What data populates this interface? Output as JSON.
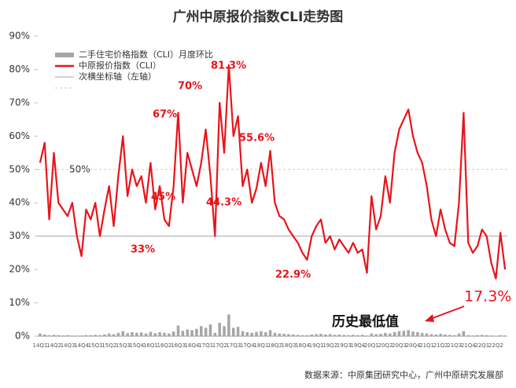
{
  "chart_data": {
    "type": "line",
    "title": "广州中原报价指数CLI走势图",
    "categories": [
      "14Q1",
      null,
      null,
      "14Q2",
      null,
      null,
      "14Q3",
      null,
      null,
      "14Q4",
      null,
      null,
      "15Q1",
      null,
      null,
      "15Q2",
      null,
      null,
      "15Q3",
      null,
      null,
      "15Q4",
      null,
      null,
      "16Q1",
      null,
      null,
      "16Q2",
      null,
      null,
      "16Q3",
      null,
      null,
      "16Q4",
      null,
      null,
      "17Q1",
      null,
      null,
      "17Q2",
      null,
      null,
      "17Q3",
      null,
      null,
      "17Q4",
      null,
      null,
      "18Q1",
      null,
      null,
      "18Q2",
      null,
      null,
      "18Q3",
      null,
      null,
      "18Q4",
      null,
      null,
      "19Q1",
      null,
      null,
      "19Q2",
      null,
      null,
      "19Q3",
      null,
      null,
      "19Q4",
      null,
      null,
      "20Q1",
      null,
      null,
      "20Q2",
      null,
      null,
      "20Q3",
      null,
      null,
      "20Q4",
      null,
      null,
      "21Q1",
      null,
      null,
      "21Q2",
      null,
      null,
      "21Q3",
      null,
      null,
      "21Q4",
      null,
      null,
      "22Q1",
      null,
      null,
      "22Q2",
      null,
      null
    ],
    "series": [
      {
        "name": "二手住宅价格指数（CLI）月度环比",
        "type": "bar",
        "color": "#a6a6a6",
        "values": [
          0.8,
          0.5,
          0.3,
          0.4,
          0.3,
          0.2,
          0.3,
          0.2,
          0.2,
          0.2,
          0.3,
          0.3,
          0.4,
          0.3,
          0.5,
          0.8,
          0.6,
          1.0,
          1.5,
          0.9,
          1.2,
          1.0,
          1.1,
          0.8,
          1.3,
          0.9,
          1.2,
          1.0,
          0.8,
          1.4,
          3.2,
          1.6,
          2.0,
          1.8,
          2.2,
          3.0,
          2.5,
          3.5,
          1.0,
          4.0,
          3.0,
          6.5,
          2.5,
          2.8,
          1.5,
          1.2,
          1.0,
          1.3,
          1.5,
          1.2,
          1.8,
          1.0,
          0.8,
          0.7,
          0.6,
          0.5,
          0.4,
          0.3,
          0.3,
          0.5,
          0.6,
          0.7,
          0.5,
          0.6,
          0.4,
          0.5,
          0.4,
          0.3,
          0.4,
          0.3,
          0.4,
          0.2,
          0.8,
          0.6,
          0.7,
          1.0,
          0.8,
          1.2,
          1.5,
          1.6,
          1.8,
          1.4,
          1.2,
          1.0,
          0.8,
          0.6,
          0.5,
          0.7,
          0.5,
          0.4,
          0.3,
          0.8,
          1.5,
          0.3,
          0.2,
          0.3,
          0.4,
          0.3,
          0.2,
          0.1,
          0.3,
          0.2
        ]
      },
      {
        "name": "中原报价指数（CLI）",
        "type": "line",
        "color": "#e8141a",
        "values": [
          52,
          58,
          35,
          55,
          40,
          38,
          36,
          40,
          30,
          24,
          38,
          35,
          40,
          30,
          38,
          45,
          33,
          48,
          60,
          42,
          50,
          45,
          48,
          40,
          52,
          38,
          45,
          35,
          33,
          45,
          67,
          40,
          55,
          50,
          45,
          52,
          62,
          48,
          30,
          70,
          55,
          81.3,
          60,
          66,
          45,
          50,
          40,
          44.3,
          52,
          45,
          55.6,
          40,
          36,
          35,
          32,
          30,
          28,
          25,
          22.9,
          30,
          33,
          35,
          28,
          30,
          26,
          29,
          27,
          25,
          28,
          25,
          26,
          19,
          42,
          32,
          36,
          48,
          40,
          55,
          62,
          65,
          68,
          60,
          55,
          52,
          45,
          35,
          30,
          38,
          32,
          28,
          27,
          40,
          67,
          28,
          25,
          27,
          32,
          30,
          22,
          17.3,
          31,
          20
        ]
      }
    ],
    "hlines": [
      {
        "name": "次横坐标轴（左轴）",
        "value": 30,
        "color": "#a6a6a6"
      },
      {
        "value": 50,
        "color": "#f5c08a",
        "dashed": true
      }
    ],
    "annotations": [
      "81.3%",
      "70%",
      "67%",
      "55.6%",
      "45%",
      "44.3%",
      "33%",
      "22.9%",
      "50%",
      "17.3%",
      "历史最低值"
    ],
    "source": "数据来源：中原集团研究中心，广州中原研究发展部",
    "ylim": [
      0,
      90
    ],
    "yticks": [
      {
        "value": 0,
        "label": "0%"
      },
      {
        "value": 10,
        "label": "10%"
      },
      {
        "value": 20,
        "label": "20%"
      },
      {
        "value": 30,
        "label": "30%"
      },
      {
        "value": 40,
        "label": "40%"
      },
      {
        "value": 50,
        "label": "50%"
      },
      {
        "value": 60,
        "label": "60%"
      },
      {
        "value": 70,
        "label": "70%"
      },
      {
        "value": 80,
        "label": "80%"
      },
      {
        "value": 90,
        "label": "90%"
      }
    ],
    "legend": "upper left"
  }
}
